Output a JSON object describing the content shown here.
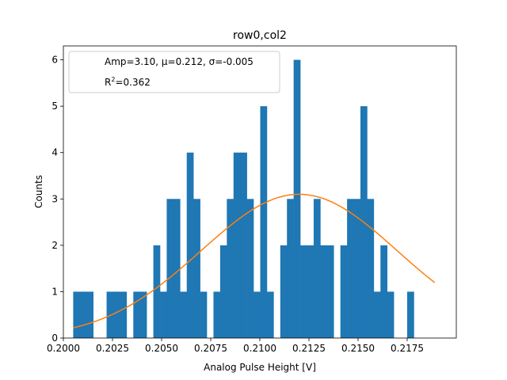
{
  "chart_data": {
    "type": "bar",
    "title": "row0,col2",
    "xlabel": "Analog Pulse Height [V]",
    "ylabel": "Counts",
    "xlim": [
      0.2,
      0.22
    ],
    "ylim": [
      0,
      6.3
    ],
    "x_ticks": [
      "0.2000",
      "0.2025",
      "0.2050",
      "0.2075",
      "0.2100",
      "0.2125",
      "0.2150",
      "0.2175"
    ],
    "y_ticks": [
      "0",
      "1",
      "2",
      "3",
      "4",
      "5",
      "6"
    ],
    "bin_start": 0.2005,
    "bin_width": 0.00034,
    "counts": [
      1,
      1,
      1,
      0,
      0,
      1,
      1,
      1,
      0,
      1,
      1,
      0,
      2,
      1,
      3,
      3,
      1,
      4,
      3,
      1,
      0,
      1,
      2,
      3,
      4,
      4,
      3,
      1,
      5,
      1,
      0,
      2,
      3,
      6,
      2,
      2,
      3,
      2,
      2,
      0,
      2,
      3,
      3,
      5,
      3,
      1,
      2,
      1,
      0,
      0,
      1
    ],
    "colors": {
      "bars": "#1f77b4",
      "fit": "#ff7f0e"
    },
    "fit": {
      "amp": 3.1,
      "mu": 0.212,
      "sigma": 0.005,
      "x_range": [
        0.2005,
        0.2189
      ]
    },
    "legend": {
      "placement": "top-left",
      "line1": "Amp=3.10, μ=0.212, σ=-0.005",
      "line2_prefix": "R",
      "line2_sup": "2",
      "line2_suffix": "=0.362"
    }
  }
}
